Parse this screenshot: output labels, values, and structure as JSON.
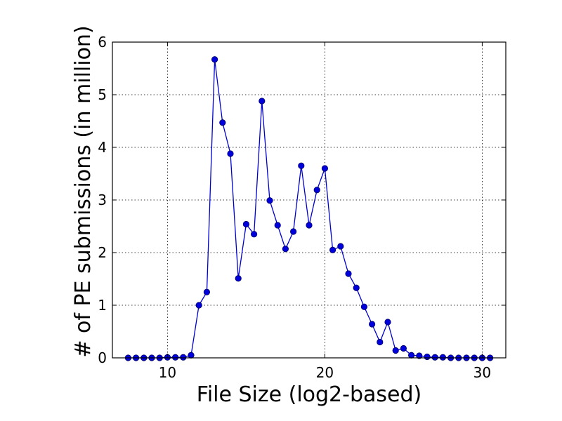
{
  "chart_data": {
    "type": "line",
    "xlabel": "File Size (log2-based)",
    "ylabel": "# of PE submissions (in million)",
    "xlim": [
      6.5,
      31.5
    ],
    "ylim": [
      0,
      6
    ],
    "xticks": [
      10,
      20,
      30
    ],
    "yticks": [
      0,
      1,
      2,
      3,
      4,
      5,
      6
    ],
    "xtick_labels": [
      "10",
      "20",
      "30"
    ],
    "ytick_labels": [
      "0",
      "1",
      "2",
      "3",
      "4",
      "5",
      "6"
    ],
    "grid": true,
    "line_color": "#0000cc",
    "marker_color": "#0000dd",
    "series": [
      {
        "x": [
          7.5,
          8,
          8.5,
          9,
          9.5,
          10,
          10.5,
          11,
          11.5,
          12,
          12.5,
          13,
          13.5,
          14,
          14.5,
          15,
          15.5,
          16,
          16.5,
          17,
          17.5,
          18,
          18.5,
          19,
          19.5,
          20,
          20.5,
          21,
          21.5,
          22,
          22.5,
          23,
          23.5,
          24,
          24.5,
          25,
          25.5,
          26,
          26.5,
          27,
          27.5,
          28,
          28.5,
          29,
          29.5,
          30,
          30.5
        ],
        "y": [
          0.0,
          0.0,
          0.0,
          0.0,
          0.0,
          0.01,
          0.01,
          0.01,
          0.05,
          1.0,
          1.25,
          5.67,
          4.47,
          3.88,
          1.51,
          2.54,
          2.35,
          4.88,
          2.99,
          2.52,
          2.07,
          2.4,
          3.65,
          2.52,
          3.19,
          3.6,
          2.05,
          2.12,
          1.6,
          1.33,
          0.97,
          0.64,
          0.3,
          0.68,
          0.14,
          0.18,
          0.05,
          0.04,
          0.02,
          0.01,
          0.01,
          0.0,
          0.0,
          0.0,
          0.0,
          0.0,
          0.0
        ]
      }
    ]
  }
}
